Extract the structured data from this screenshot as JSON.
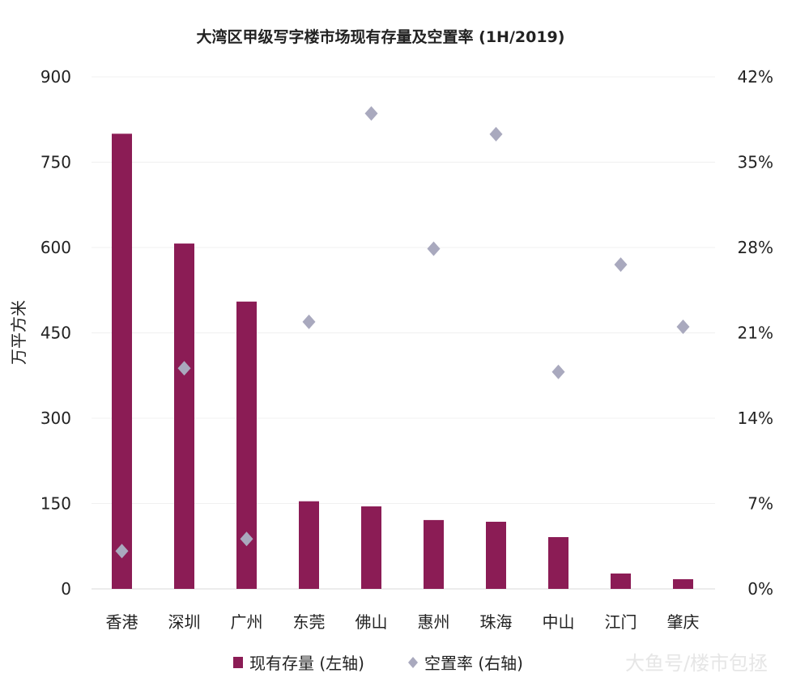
{
  "chart_data": {
    "type": "bar",
    "title": "大湾区甲级写字楼市场现有存量及空置率 (1H/2019)",
    "ylabel": "万平方米",
    "ylim": [
      0,
      900
    ],
    "y2lim": [
      0,
      42
    ],
    "yticks": [
      "0",
      "150",
      "300",
      "450",
      "600",
      "750",
      "900"
    ],
    "y2ticks": [
      "0%",
      "7%",
      "14%",
      "21%",
      "28%",
      "35%",
      "42%"
    ],
    "categories": [
      "香港",
      "深圳",
      "广州",
      "东莞",
      "佛山",
      "惠州",
      "珠海",
      "中山",
      "江门",
      "肇庆"
    ],
    "series": [
      {
        "name": "现有存量 (左轴)",
        "type": "bar",
        "axis": "left",
        "color": "#8b1c55",
        "values": [
          800,
          607,
          505,
          154,
          145,
          121,
          118,
          91,
          27,
          17
        ]
      },
      {
        "name": "空置率 (右轴)",
        "type": "scatter",
        "marker": "diamond",
        "axis": "right",
        "color": "#a9a9be",
        "values": [
          3.1,
          18.1,
          4.1,
          21.9,
          39.0,
          27.9,
          37.3,
          17.8,
          26.6,
          21.5
        ]
      }
    ],
    "grid": true,
    "legend": "bottom"
  },
  "watermark": "大鱼号/楼市包拯"
}
